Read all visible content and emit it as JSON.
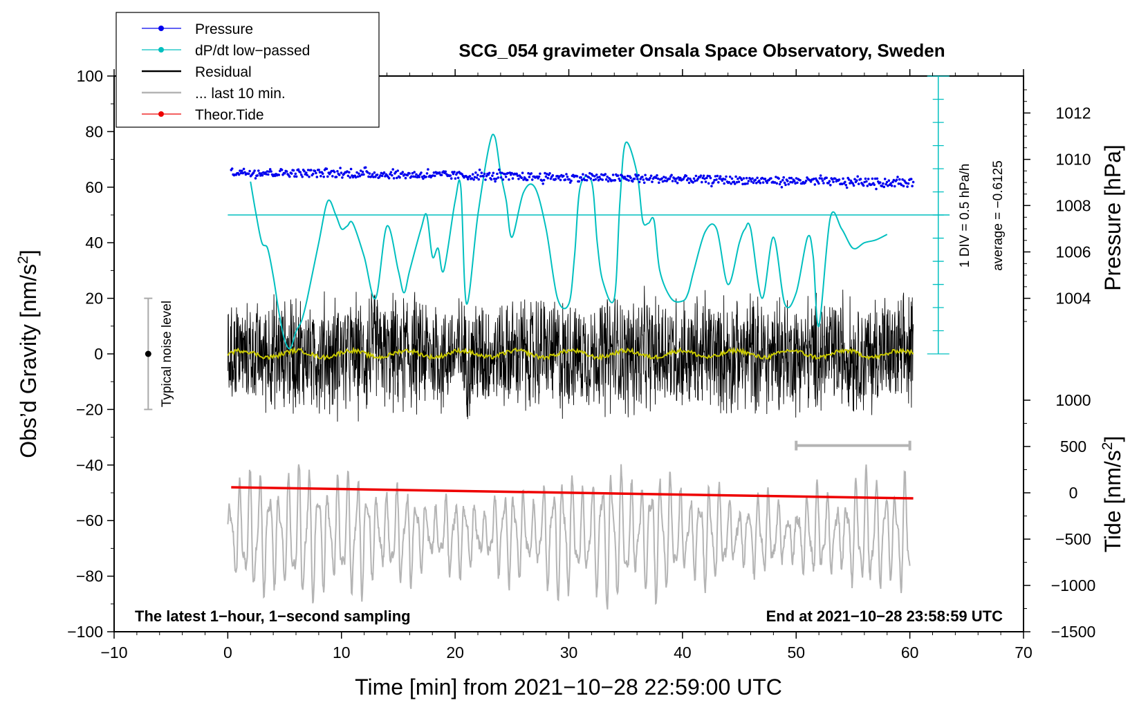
{
  "chart_data": {
    "type": "line",
    "title": "SCG_054 gravimeter Onsala Space Observatory, Sweden",
    "xlabel": "Time [min] from 2021−10−28 22:59:00 UTC",
    "ylabel": "Obs’d Gravity [nm/s²]",
    "ylabel_main": "Obs’d Gravity [nm/s",
    "ylabel_sup": "2",
    "ylabel_end": "]",
    "y2label": "Pressure [hPa]",
    "y3label_main": "Tide [nm/s",
    "y3label_sup": "2",
    "y3label_end": "]",
    "xlim": [
      -10,
      70
    ],
    "ylim": [
      -100,
      100
    ],
    "xticks": [
      -10,
      0,
      10,
      20,
      30,
      40,
      50,
      60,
      70
    ],
    "xtick_labels": [
      "−10",
      "0",
      "10",
      "20",
      "30",
      "40",
      "50",
      "60",
      "70"
    ],
    "yticks": [
      -100,
      -80,
      -60,
      -40,
      -20,
      0,
      20,
      40,
      60,
      80,
      100
    ],
    "ytick_labels": [
      "−100",
      "−80",
      "−60",
      "−40",
      "−20",
      "0",
      "20",
      "40",
      "60",
      "80",
      "100"
    ],
    "pressure_axis": {
      "ticks": [
        1004,
        1006,
        1008,
        1010,
        1012
      ],
      "tick_labels": [
        "1004",
        "1006",
        "1008",
        "1010",
        "1012"
      ],
      "gravity_equivalent": {
        "1004": 20,
        "1006": 36.7,
        "1008": 53.4,
        "1010": 70.0,
        "1012": 86.7
      }
    },
    "tide_axis": {
      "ticks": [
        -1500,
        -1000,
        -500,
        0,
        500,
        1000
      ],
      "tick_labels": [
        "−1500",
        "−1000",
        "−500",
        "0",
        "500",
        "1000"
      ],
      "gravity_equivalent": {
        "-1500": -100,
        "1000": -16.67
      }
    },
    "dpdt_scale": {
      "label": "1 DIV = 0.5 hPa/h",
      "average": "average = −0.6125",
      "baseline_y": 50,
      "axis_x": 62.5,
      "axis_range": [
        0,
        100
      ],
      "div_y": 8.33
    },
    "noise_bar": {
      "label": "Typical noise level",
      "x": -7,
      "center": 0,
      "range": [
        -20,
        20
      ]
    },
    "last10_bar": {
      "x_range": [
        50,
        60
      ],
      "y": -33
    },
    "series": [
      {
        "name": "Pressure",
        "color": "#0000ee",
        "style": "dots",
        "x": [
          0.3,
          60.3
        ],
        "y": [
          65.5,
          61.5
        ],
        "scatter": 1.4
      },
      {
        "name": "dP/dt low−passed",
        "color": "#00bfbf",
        "style": "line",
        "x": [
          2,
          2.5,
          3,
          3.5,
          4,
          4.5,
          5,
          5.5,
          6,
          6.5,
          7,
          8,
          8.8,
          9.5,
          10,
          10.5,
          11,
          12,
          13,
          14,
          15,
          15.5,
          16,
          17,
          17.5,
          18,
          18.5,
          19,
          20,
          20.5,
          21,
          22,
          23,
          23.5,
          24,
          24.5,
          25,
          26,
          27,
          28,
          29,
          30,
          30.5,
          31,
          32,
          32.5,
          33,
          34,
          34.5,
          35,
          36,
          36.5,
          37,
          37.5,
          38,
          39,
          40,
          40.5,
          41,
          42,
          43,
          44,
          45,
          45.5,
          46,
          47,
          48,
          49,
          50,
          51,
          51.5,
          52,
          53,
          54,
          55,
          56,
          57,
          58
        ],
        "y": [
          62,
          50,
          40,
          38,
          28,
          15,
          5,
          2,
          8,
          12,
          20,
          40,
          55,
          50,
          45,
          46,
          47,
          35,
          20,
          46,
          30,
          22,
          30,
          45,
          50,
          35,
          38,
          30,
          55,
          60,
          18,
          50,
          75,
          78,
          65,
          55,
          42,
          58,
          60,
          45,
          20,
          18,
          35,
          60,
          62,
          40,
          26,
          20,
          55,
          76,
          65,
          48,
          47,
          48,
          30,
          20,
          19,
          22,
          30,
          44,
          45,
          25,
          40,
          45,
          45,
          20,
          42,
          18,
          22,
          42,
          35,
          10,
          49,
          45,
          38,
          40,
          41,
          43
        ]
      },
      {
        "name": "Residual",
        "color": "#000000",
        "style": "noise",
        "x": [
          0,
          60.3
        ],
        "y": [
          0,
          0
        ],
        "amplitude": 20
      },
      {
        "name": "... last 10 min.",
        "color": "#b4b4b4",
        "style": "oscillation",
        "x": [
          0,
          60
        ],
        "center": -65,
        "amplitude": 22
      },
      {
        "name": "Theor.Tide",
        "color": "#ee0000",
        "style": "line",
        "x": [
          0.3,
          60.3
        ],
        "y": [
          -48,
          -52
        ]
      }
    ],
    "yellow_trend": {
      "color": "#c8c800",
      "x": [
        0,
        60.3
      ],
      "y": [
        0,
        0
      ]
    },
    "annotations": {
      "left": "The latest 1−hour, 1−second sampling",
      "right": "End at 2021−10−28 23:58:59 UTC"
    },
    "legend": [
      {
        "label": "Pressure",
        "color": "#0000ee",
        "marker": true
      },
      {
        "label": "dP/dt low−passed",
        "color": "#00bfbf",
        "marker": true
      },
      {
        "label": "Residual",
        "color": "#000000",
        "marker": false
      },
      {
        "label": "... last 10 min.",
        "color": "#b4b4b4",
        "marker": false
      },
      {
        "label": "Theor.Tide",
        "color": "#ee0000",
        "marker": true
      }
    ]
  }
}
